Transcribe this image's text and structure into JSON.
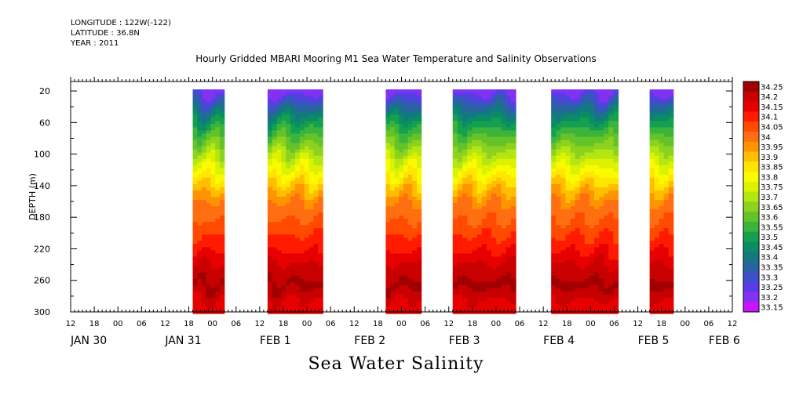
{
  "header": {
    "longitude": "LONGITUDE : 122W(-122)",
    "latitude": "LATITUDE : 36.8N",
    "year": "YEAR : 2011"
  },
  "chart_data": {
    "type": "heatmap",
    "title": "Hourly Gridded MBARI Mooring M1 Sea Water Temperature and Salinity Observations",
    "bottom_title": "Sea Water Salinity",
    "ylabel": "DEPTH (m)",
    "xlabel": "",
    "x_unit": "hours since 2011-01-30 12:00",
    "xlim": [
      0,
      168
    ],
    "ylim": [
      300,
      0
    ],
    "y_ticks": [
      20,
      60,
      100,
      140,
      180,
      220,
      260,
      300
    ],
    "x_hour_ticks": [
      "12",
      "18",
      "00",
      "06",
      "12",
      "18",
      "00",
      "06",
      "12",
      "18",
      "00",
      "06",
      "12",
      "18",
      "00",
      "06",
      "12",
      "18",
      "00",
      "06",
      "12",
      "18",
      "00",
      "06",
      "12",
      "18",
      "00",
      "06",
      "12"
    ],
    "x_day_labels": [
      {
        "label": "JAN 30",
        "hour": 0
      },
      {
        "label": "JAN 31",
        "hour": 24
      },
      {
        "label": "FEB  1",
        "hour": 48
      },
      {
        "label": "FEB  2",
        "hour": 72
      },
      {
        "label": "FEB  3",
        "hour": 96
      },
      {
        "label": "FEB  4",
        "hour": 120
      },
      {
        "label": "FEB  5",
        "hour": 144
      },
      {
        "label": "FEB  6",
        "hour": 162
      }
    ],
    "data_segments": [
      {
        "start_hour": 31,
        "end_hour": 39
      },
      {
        "start_hour": 50,
        "end_hour": 64
      },
      {
        "start_hour": 80,
        "end_hour": 89
      },
      {
        "start_hour": 97,
        "end_hour": 113
      },
      {
        "start_hour": 122,
        "end_hour": 139
      },
      {
        "start_hour": 147,
        "end_hour": 153
      }
    ],
    "colorbar": {
      "labels": [
        "34.25",
        "34.2",
        "34.15",
        "34.1",
        "34.05",
        "34",
        "33.95",
        "33.9",
        "33.85",
        "33.8",
        "33.75",
        "33.7",
        "33.65",
        "33.6",
        "33.55",
        "33.5",
        "33.45",
        "33.4",
        "33.35",
        "33.3",
        "33.25",
        "33.2",
        "33.15"
      ],
      "colors": [
        "#a00000",
        "#c80000",
        "#e60000",
        "#ff1a00",
        "#ff4a00",
        "#ff6e10",
        "#ff9400",
        "#ffbe00",
        "#ffe600",
        "#fafa00",
        "#dcf200",
        "#b4e614",
        "#8cd21e",
        "#64c328",
        "#3cb43c",
        "#14a050",
        "#0a8c64",
        "#147882",
        "#2864a0",
        "#3c50c8",
        "#5a3ce6",
        "#8232f0",
        "#c814ff"
      ]
    },
    "salinity_profile": [
      {
        "depth": 20,
        "value": 33.2
      },
      {
        "depth": 30,
        "value": 33.3
      },
      {
        "depth": 45,
        "value": 33.4
      },
      {
        "depth": 60,
        "value": 33.5
      },
      {
        "depth": 80,
        "value": 33.6
      },
      {
        "depth": 100,
        "value": 33.7
      },
      {
        "depth": 120,
        "value": 33.8
      },
      {
        "depth": 140,
        "value": 33.9
      },
      {
        "depth": 160,
        "value": 33.98
      },
      {
        "depth": 180,
        "value": 34.02
      },
      {
        "depth": 200,
        "value": 34.07
      },
      {
        "depth": 220,
        "value": 34.12
      },
      {
        "depth": 245,
        "value": 34.2
      },
      {
        "depth": 265,
        "value": 34.24
      },
      {
        "depth": 280,
        "value": 34.18
      },
      {
        "depth": 300,
        "value": 34.15
      }
    ]
  }
}
